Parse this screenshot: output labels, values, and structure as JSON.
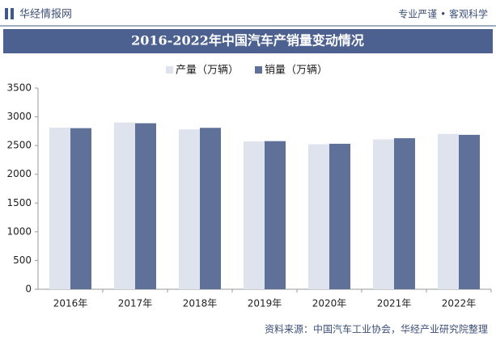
{
  "header": {
    "brand": "华经情报网",
    "slogan": "专业严谨 • 客观科学"
  },
  "chart_data": {
    "type": "bar",
    "title": "2016-2022年中国汽车产销量变动情况",
    "categories": [
      "2016年",
      "2017年",
      "2018年",
      "2019年",
      "2020年",
      "2021年",
      "2022年"
    ],
    "series": [
      {
        "name": "产量（万辆）",
        "color": "#dfe3ee",
        "values": [
          2811.9,
          2901.5,
          2780.9,
          2572.1,
          2522.5,
          2608.2,
          2702.1
        ]
      },
      {
        "name": "销量（万辆）",
        "color": "#5f7199",
        "values": [
          2802.8,
          2887.9,
          2808.1,
          2576.9,
          2531.1,
          2627.5,
          2686.4
        ]
      }
    ],
    "ylim": [
      0,
      3500
    ],
    "yticks": [
      0,
      500,
      1000,
      1500,
      2000,
      2500,
      3000,
      3500
    ],
    "legend": "top",
    "source": "资料来源：中国汽车工业协会，华经产业研究院整理"
  }
}
